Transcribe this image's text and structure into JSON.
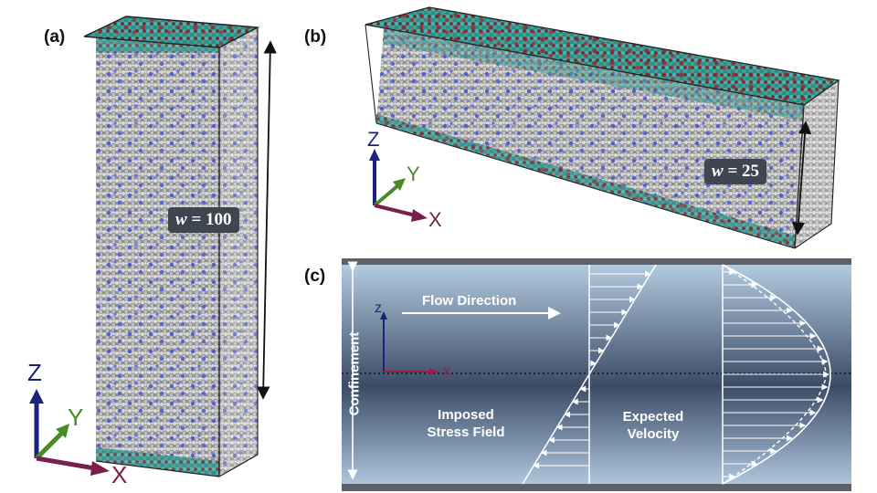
{
  "panels": {
    "a": {
      "label": "(a)",
      "width_label_var": "w",
      "width_label_eq": " = 100"
    },
    "b": {
      "label": "(b)",
      "width_label_var": "w",
      "width_label_eq": " = 25"
    },
    "c": {
      "label": "(c)"
    }
  },
  "axes": {
    "z": "Z",
    "y": "Y",
    "x": "X"
  },
  "schematic": {
    "flow_direction": "Flow Direction",
    "confinement": "Confinement",
    "stress_field_line1": "Imposed",
    "stress_field_line2": "Stress Field",
    "velocity_line1": "Expected",
    "velocity_line2": "Velocity",
    "axis_z": "z",
    "axis_x": "x"
  },
  "colors": {
    "particle_bulk": "#c9c9c9",
    "particle_blue": "#5060d0",
    "wall_teal": "#3aa39a",
    "wall_red": "#9a1a24",
    "axis_z": "#1a237e",
    "axis_y": "#4a8a28",
    "axis_x": "#7a1f4a"
  }
}
